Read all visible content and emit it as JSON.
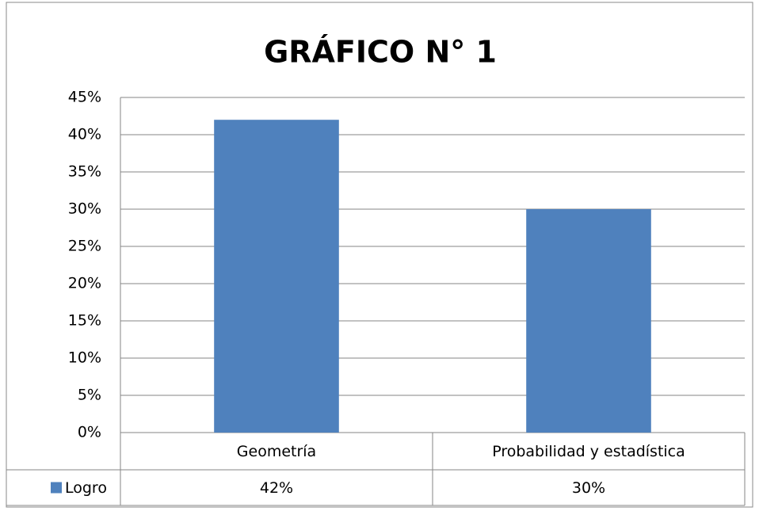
{
  "chart_data": {
    "type": "bar",
    "title": "GRÁFICO N° 1",
    "categories": [
      "Geometría",
      "Probabilidad y estadística"
    ],
    "series": [
      {
        "name": "Logro",
        "color": "#4f81bd",
        "values": [
          42,
          30
        ],
        "value_labels": [
          "42%",
          "30%"
        ]
      }
    ],
    "ylim": [
      0,
      45
    ],
    "yticks": [
      {
        "value": 0,
        "label": "0%"
      },
      {
        "value": 5,
        "label": "5%"
      },
      {
        "value": 10,
        "label": "10%"
      },
      {
        "value": 15,
        "label": "15%"
      },
      {
        "value": 20,
        "label": "20%"
      },
      {
        "value": 25,
        "label": "25%"
      },
      {
        "value": 30,
        "label": "30%"
      },
      {
        "value": 35,
        "label": "35%"
      },
      {
        "value": 40,
        "label": "40%"
      },
      {
        "value": 45,
        "label": "45%"
      }
    ],
    "grid": true,
    "data_table": true
  }
}
